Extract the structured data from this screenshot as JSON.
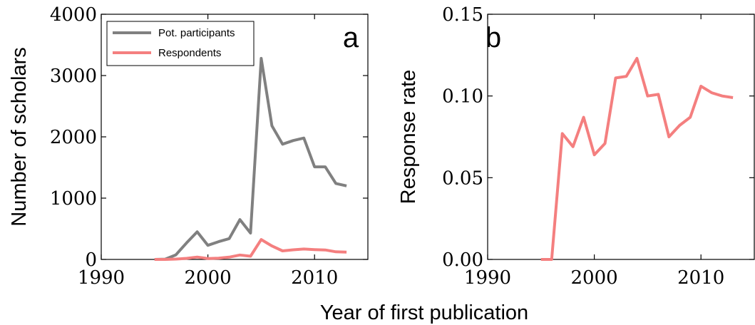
{
  "figure": {
    "shared_xlabel": "Year of first publication"
  },
  "chart_data": [
    {
      "type": "line",
      "panel_label": "a",
      "title": "",
      "xlabel": "Year of first publication",
      "ylabel": "Number of scholars",
      "xlim": [
        1990,
        2015
      ],
      "ylim": [
        0,
        4000
      ],
      "xticks": [
        "1990",
        "2000",
        "2010"
      ],
      "yticks": [
        "0",
        "1000",
        "2000",
        "3000",
        "4000"
      ],
      "grid": false,
      "legend": "top-left",
      "series": [
        {
          "name": "Pot. participants",
          "color": "#808080",
          "x": [
            1995,
            1996,
            1997,
            1998,
            1999,
            2000,
            2001,
            2002,
            2003,
            2004,
            2005,
            2006,
            2007,
            2008,
            2009,
            2010,
            2011,
            2012,
            2013
          ],
          "y": [
            0,
            5,
            75,
            270,
            450,
            230,
            290,
            340,
            650,
            430,
            3280,
            2180,
            1880,
            1940,
            1980,
            1510,
            1510,
            1240,
            1200
          ]
        },
        {
          "name": "Respondents",
          "color": "#f47f7f",
          "x": [
            1995,
            1996,
            1997,
            1998,
            1999,
            2000,
            2001,
            2002,
            2003,
            2004,
            2005,
            2006,
            2007,
            2008,
            2009,
            2010,
            2011,
            2012,
            2013
          ],
          "y": [
            0,
            0,
            6,
            18,
            38,
            15,
            20,
            37,
            72,
            52,
            325,
            220,
            140,
            157,
            170,
            160,
            155,
            125,
            120
          ]
        }
      ]
    },
    {
      "type": "line",
      "panel_label": "b",
      "title": "",
      "xlabel": "Year of first publication",
      "ylabel": "Response rate",
      "xlim": [
        1990,
        2015
      ],
      "ylim": [
        0,
        0.15
      ],
      "xticks": [
        "1990",
        "2000",
        "2010"
      ],
      "yticks": [
        "0.00",
        "0.05",
        "0.10",
        "0.15"
      ],
      "grid": false,
      "series": [
        {
          "color": "#f47f7f",
          "x": [
            1995,
            1996,
            1997,
            1998,
            1999,
            2000,
            2001,
            2002,
            2003,
            2004,
            2005,
            2006,
            2007,
            2008,
            2009,
            2010,
            2011,
            2012,
            2013
          ],
          "y": [
            0.0,
            0.0,
            0.077,
            0.069,
            0.087,
            0.064,
            0.071,
            0.111,
            0.112,
            0.123,
            0.1,
            0.101,
            0.075,
            0.082,
            0.087,
            0.106,
            0.102,
            0.1,
            0.099
          ]
        }
      ]
    }
  ]
}
